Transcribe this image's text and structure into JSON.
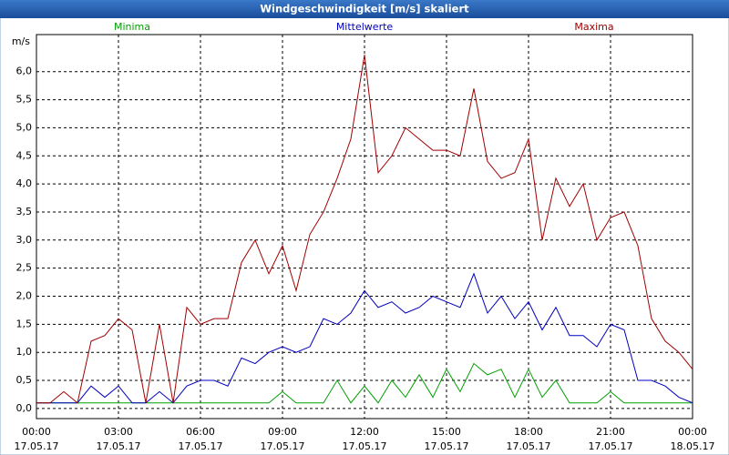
{
  "chart_data": {
    "type": "line",
    "title": "Windgeschwindigkeit [m/s] skaliert",
    "y_unit": "m/s",
    "legend": "top",
    "grid": true,
    "xlim": [
      0,
      24
    ],
    "xticks": [
      {
        "value": 0,
        "label": "00:00"
      },
      {
        "value": 3,
        "label": "03:00"
      },
      {
        "value": 6,
        "label": "06:00"
      },
      {
        "value": 9,
        "label": "09:00"
      },
      {
        "value": 12,
        "label": "12:00"
      },
      {
        "value": 15,
        "label": "15:00"
      },
      {
        "value": 18,
        "label": "18:00"
      },
      {
        "value": 21,
        "label": "21:00"
      },
      {
        "value": 24,
        "label": "00:00"
      }
    ],
    "xtick_dates": [
      "17.05.17",
      "17.05.17",
      "17.05.17",
      "17.05.17",
      "17.05.17",
      "17.05.17",
      "17.05.17",
      "17.05.17",
      "18.05.17"
    ],
    "ylim": [
      -0.18,
      6.66
    ],
    "yticks": [
      {
        "value": 0,
        "label": "0,0"
      },
      {
        "value": 0.5,
        "label": "0,5"
      },
      {
        "value": 1,
        "label": "1,0"
      },
      {
        "value": 1.5,
        "label": "1,5"
      },
      {
        "value": 2,
        "label": "2,0"
      },
      {
        "value": 2.5,
        "label": "2,5"
      },
      {
        "value": 3,
        "label": "3,0"
      },
      {
        "value": 3.5,
        "label": "3,5"
      },
      {
        "value": 4,
        "label": "4,0"
      },
      {
        "value": 4.5,
        "label": "4,5"
      },
      {
        "value": 5,
        "label": "5,0"
      },
      {
        "value": 5.5,
        "label": "5,5"
      },
      {
        "value": 6,
        "label": "6,0"
      }
    ],
    "x": [
      0,
      0.5,
      1,
      1.5,
      2,
      2.5,
      3,
      3.5,
      4,
      4.5,
      5,
      5.5,
      6,
      6.5,
      7,
      7.5,
      8,
      8.5,
      9,
      9.5,
      10,
      10.5,
      11,
      11.5,
      12,
      12.5,
      13,
      13.5,
      14,
      14.5,
      15,
      15.5,
      16,
      16.5,
      17,
      17.5,
      18,
      18.5,
      19,
      19.5,
      20,
      20.5,
      21,
      21.5,
      22,
      22.5,
      23,
      23.5,
      24
    ],
    "series": [
      {
        "name": "Minima",
        "color": "#00a000",
        "values": [
          0.1,
          0.1,
          0.1,
          0.1,
          0.1,
          0.1,
          0.1,
          0.1,
          0.1,
          0.1,
          0.1,
          0.1,
          0.1,
          0.1,
          0.1,
          0.1,
          0.1,
          0.1,
          0.3,
          0.1,
          0.1,
          0.1,
          0.5,
          0.1,
          0.4,
          0.1,
          0.5,
          0.2,
          0.6,
          0.2,
          0.7,
          0.3,
          0.8,
          0.6,
          0.7,
          0.2,
          0.7,
          0.2,
          0.5,
          0.1,
          0.1,
          0.1,
          0.3,
          0.1,
          0.1,
          0.1,
          0.1,
          0.1,
          0.1
        ]
      },
      {
        "name": "Mittelwerte",
        "color": "#0000c0",
        "values": [
          0.1,
          0.1,
          0.1,
          0.1,
          0.4,
          0.2,
          0.4,
          0.1,
          0.1,
          0.3,
          0.1,
          0.4,
          0.5,
          0.5,
          0.4,
          0.9,
          0.8,
          1.0,
          1.1,
          1.0,
          1.1,
          1.6,
          1.5,
          1.7,
          2.1,
          1.8,
          1.9,
          1.7,
          1.8,
          2.0,
          1.9,
          1.8,
          2.4,
          1.7,
          2.0,
          1.6,
          1.9,
          1.4,
          1.8,
          1.3,
          1.3,
          1.1,
          1.5,
          1.4,
          0.5,
          0.5,
          0.4,
          0.2,
          0.1
        ]
      },
      {
        "name": "Maxima",
        "color": "#a00000",
        "values": [
          0.1,
          0.1,
          0.3,
          0.1,
          1.2,
          1.3,
          1.6,
          1.4,
          0.1,
          1.5,
          0.1,
          1.8,
          1.5,
          1.6,
          1.6,
          2.6,
          3.0,
          2.4,
          2.9,
          2.1,
          3.1,
          3.5,
          4.1,
          4.8,
          6.3,
          4.2,
          4.5,
          5.0,
          4.8,
          4.6,
          4.6,
          4.5,
          5.7,
          4.4,
          4.1,
          4.2,
          4.8,
          3.0,
          4.1,
          3.6,
          4.0,
          3.0,
          3.4,
          3.5,
          2.9,
          1.6,
          1.2,
          1.0,
          0.7
        ]
      }
    ]
  }
}
